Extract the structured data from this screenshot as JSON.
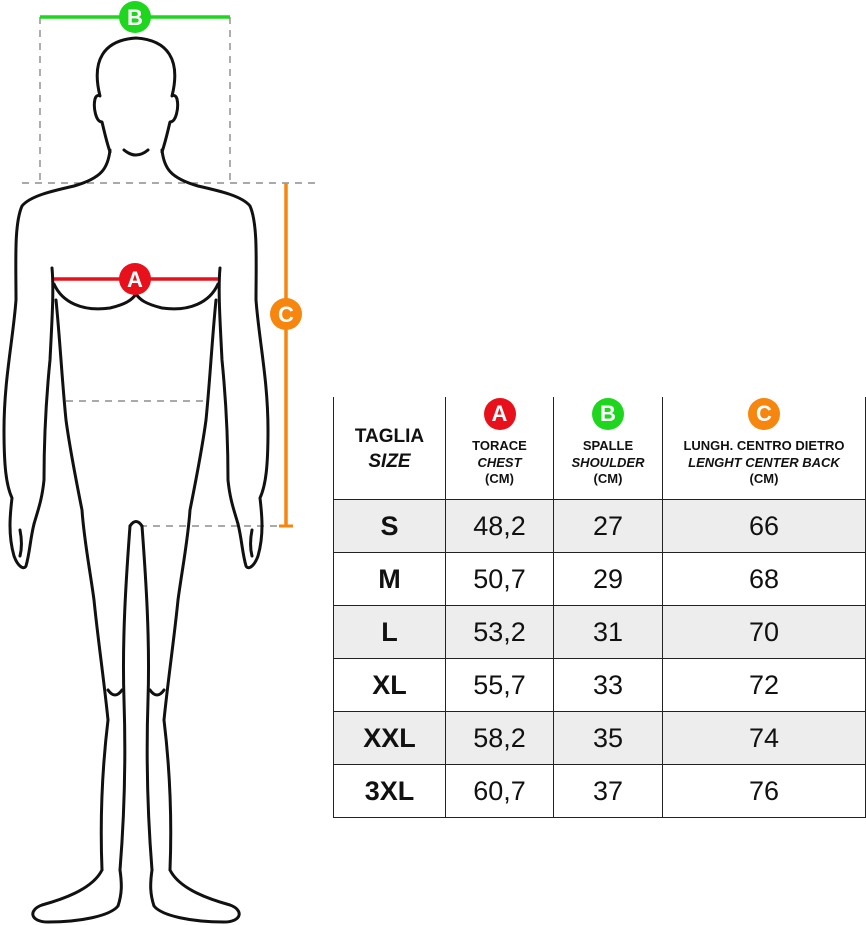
{
  "markers": {
    "a": {
      "letter": "A",
      "color": "#e8101a"
    },
    "b": {
      "letter": "B",
      "color": "#1ed61e"
    },
    "c": {
      "letter": "C",
      "color": "#f7860f"
    }
  },
  "table": {
    "size_header": {
      "main": "TAGLIA",
      "sub": "SIZE"
    },
    "columns": [
      {
        "marker": "A",
        "color": "#e8101a",
        "label": "TORACE",
        "label_en": "CHEST",
        "unit": "(CM)"
      },
      {
        "marker": "B",
        "color": "#1ed61e",
        "label": "SPALLE",
        "label_en": "SHOULDER",
        "unit": "(CM)"
      },
      {
        "marker": "C",
        "color": "#f7860f",
        "label": "LUNGH. CENTRO DIETRO",
        "label_en": "LENGHT CENTER BACK",
        "unit": "(CM)"
      }
    ],
    "rows": [
      {
        "size": "S",
        "chest": "48,2",
        "shoulder": "27",
        "length": "66"
      },
      {
        "size": "M",
        "chest": "50,7",
        "shoulder": "29",
        "length": "68"
      },
      {
        "size": "L",
        "chest": "53,2",
        "shoulder": "31",
        "length": "70"
      },
      {
        "size": "XL",
        "chest": "55,7",
        "shoulder": "33",
        "length": "72"
      },
      {
        "size": "XXL",
        "chest": "58,2",
        "shoulder": "35",
        "length": "74"
      },
      {
        "size": "3XL",
        "chest": "60,7",
        "shoulder": "37",
        "length": "76"
      }
    ]
  }
}
